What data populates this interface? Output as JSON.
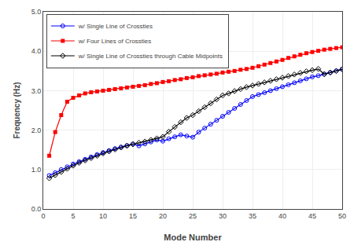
{
  "chart_data": {
    "type": "line",
    "xlabel": "Mode Number",
    "ylabel": "Frequency (Hz)",
    "x": [
      1,
      2,
      3,
      4,
      5,
      6,
      7,
      8,
      9,
      10,
      11,
      12,
      13,
      14,
      15,
      16,
      17,
      18,
      19,
      20,
      21,
      22,
      23,
      24,
      25,
      26,
      27,
      28,
      29,
      30,
      31,
      32,
      33,
      34,
      35,
      36,
      37,
      38,
      39,
      40,
      41,
      42,
      43,
      44,
      45,
      46,
      47,
      48,
      49,
      50
    ],
    "series": [
      {
        "name": "w/ Single Line of Crossties",
        "color": "#0000FF",
        "marker": "circle-open",
        "values": [
          0.85,
          0.92,
          1.0,
          1.07,
          1.14,
          1.2,
          1.26,
          1.32,
          1.38,
          1.43,
          1.48,
          1.53,
          1.57,
          1.61,
          1.65,
          1.6,
          1.65,
          1.7,
          1.75,
          1.72,
          1.78,
          1.83,
          1.88,
          1.85,
          1.82,
          1.95,
          2.05,
          2.15,
          2.25,
          2.35,
          2.45,
          2.55,
          2.65,
          2.75,
          2.85,
          2.9,
          2.95,
          3.0,
          3.05,
          3.1,
          3.15,
          3.2,
          3.25,
          3.3,
          3.35,
          3.38,
          3.42,
          3.46,
          3.5,
          3.55
        ]
      },
      {
        "name": "w/ Four Lines of Crossties",
        "color": "#FF0000",
        "marker": "square",
        "values": [
          1.35,
          1.95,
          2.38,
          2.72,
          2.82,
          2.88,
          2.93,
          2.96,
          2.98,
          3.0,
          3.02,
          3.04,
          3.06,
          3.08,
          3.1,
          3.12,
          3.14,
          3.17,
          3.19,
          3.22,
          3.24,
          3.27,
          3.29,
          3.32,
          3.34,
          3.37,
          3.39,
          3.41,
          3.43,
          3.46,
          3.48,
          3.5,
          3.53,
          3.55,
          3.58,
          3.62,
          3.66,
          3.7,
          3.74,
          3.78,
          3.83,
          3.87,
          3.91,
          3.95,
          3.98,
          4.01,
          4.04,
          4.06,
          4.08,
          4.1
        ]
      },
      {
        "name": "w/ Single Line of Crossties through Cable Midpoints",
        "color": "#000000",
        "marker": "diamond-open",
        "values": [
          0.78,
          0.86,
          0.94,
          1.02,
          1.1,
          1.17,
          1.23,
          1.29,
          1.35,
          1.41,
          1.46,
          1.51,
          1.56,
          1.6,
          1.64,
          1.68,
          1.71,
          1.75,
          1.79,
          1.83,
          1.96,
          2.08,
          2.2,
          2.31,
          2.38,
          2.48,
          2.58,
          2.68,
          2.78,
          2.88,
          2.93,
          2.99,
          3.04,
          3.09,
          3.13,
          3.17,
          3.21,
          3.25,
          3.29,
          3.33,
          3.37,
          3.41,
          3.45,
          3.49,
          3.52,
          3.55,
          3.42,
          3.46,
          3.5,
          3.54
        ]
      }
    ],
    "xlim": [
      0,
      50
    ],
    "ylim": [
      0.0,
      5.0
    ],
    "xticks": [
      0,
      5,
      10,
      15,
      20,
      25,
      30,
      35,
      40,
      45,
      50
    ],
    "yticks": [
      {
        "value": 0,
        "label": "0.0"
      },
      {
        "value": 1,
        "label": "1.0"
      },
      {
        "value": 2,
        "label": "2.0"
      },
      {
        "value": 3,
        "label": "3.0"
      },
      {
        "value": 4,
        "label": "4.0"
      },
      {
        "value": 5,
        "label": "5.0"
      }
    ],
    "grid": true,
    "legend": "upper left"
  }
}
